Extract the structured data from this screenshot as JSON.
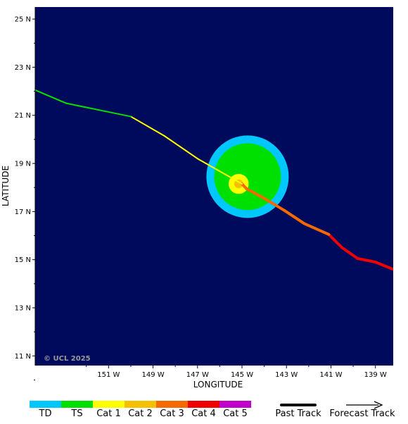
{
  "map": {
    "ocean_color": "#000a5c",
    "copyright": "© UCL 2025",
    "lon_range": [
      -154.3,
      -138.2
    ],
    "lat_range": [
      10.6,
      25.5
    ],
    "lat_ticks": [
      {
        "value": 25,
        "label": "25 N"
      },
      {
        "value": 23,
        "label": "23 N"
      },
      {
        "value": 21,
        "label": "21 N"
      },
      {
        "value": 19,
        "label": "19 N"
      },
      {
        "value": 17,
        "label": "17 N"
      },
      {
        "value": 15,
        "label": "15 N"
      },
      {
        "value": 13,
        "label": "13 N"
      },
      {
        "value": 11,
        "label": "11 N"
      }
    ],
    "lon_ticks": [
      {
        "value": -151,
        "label": "151 W"
      },
      {
        "value": -149,
        "label": "149 W"
      },
      {
        "value": -147,
        "label": "147 W"
      },
      {
        "value": -145,
        "label": "145 W"
      },
      {
        "value": -143,
        "label": "143 W"
      },
      {
        "value": -141,
        "label": "141 W"
      },
      {
        "value": -139,
        "label": "139 W"
      }
    ],
    "xlabel": "LONGITUDE",
    "ylabel": "LATITUDE",
    "past_track": [
      {
        "lon": -138.2,
        "lat": 14.6,
        "cat": "cat4"
      },
      {
        "lon": -139.0,
        "lat": 14.9,
        "cat": "cat4"
      },
      {
        "lon": -139.8,
        "lat": 15.05,
        "cat": "cat4"
      },
      {
        "lon": -140.5,
        "lat": 15.5,
        "cat": "cat4"
      },
      {
        "lon": -141.1,
        "lat": 16.05,
        "cat": "cat4"
      },
      {
        "lon": -142.2,
        "lat": 16.5,
        "cat": "cat3"
      },
      {
        "lon": -143.1,
        "lat": 17.05,
        "cat": "cat3"
      },
      {
        "lon": -144.0,
        "lat": 17.55,
        "cat": "cat3"
      },
      {
        "lon": -144.8,
        "lat": 17.95,
        "cat": "cat3"
      }
    ],
    "forecast_track": [
      {
        "lon": -145.0,
        "lat": 18.15,
        "cat": "cat1"
      },
      {
        "lon": -147.0,
        "lat": 19.2,
        "cat": "cat1"
      },
      {
        "lon": -148.5,
        "lat": 20.15,
        "cat": "cat1"
      },
      {
        "lon": -150.0,
        "lat": 20.95,
        "cat": "cat1"
      },
      {
        "lon": -152.9,
        "lat": 21.5,
        "cat": "ts"
      },
      {
        "lon": -154.3,
        "lat": 22.05,
        "cat": "ts"
      }
    ],
    "wind_fields": [
      {
        "name": "td",
        "center_lon": -144.75,
        "center_lat": 18.45,
        "radius_deg": 1.85,
        "color": "#00c8ff"
      },
      {
        "name": "ts",
        "center_lon": -144.75,
        "center_lat": 18.45,
        "radius_deg": 1.5,
        "color": "#00e000"
      },
      {
        "name": "cat1",
        "center_lon": -145.15,
        "center_lat": 18.15,
        "radius_deg": 0.45,
        "color": "#ffff00"
      },
      {
        "name": "cat2",
        "center_lon": -145.15,
        "center_lat": 18.15,
        "radius_deg": 0.2,
        "color": "#f5c000"
      }
    ]
  },
  "legend": {
    "categories": [
      {
        "label": "TD",
        "color": "#00c8ff"
      },
      {
        "label": "TS",
        "color": "#00e000"
      },
      {
        "label": "Cat 1",
        "color": "#ffff00"
      },
      {
        "label": "Cat 2",
        "color": "#f5c000"
      },
      {
        "label": "Cat 3",
        "color": "#f56a00"
      },
      {
        "label": "Cat 4",
        "color": "#f00000"
      },
      {
        "label": "Cat 5",
        "color": "#c000c8"
      }
    ],
    "past_track_label": "Past Track",
    "forecast_track_label": "Forecast Track"
  },
  "cat_colors": {
    "td": "#00c8ff",
    "ts": "#00e000",
    "cat1": "#ffff00",
    "cat2": "#f5c000",
    "cat3": "#f56a00",
    "cat4": "#f00000",
    "cat5": "#c000c8"
  }
}
